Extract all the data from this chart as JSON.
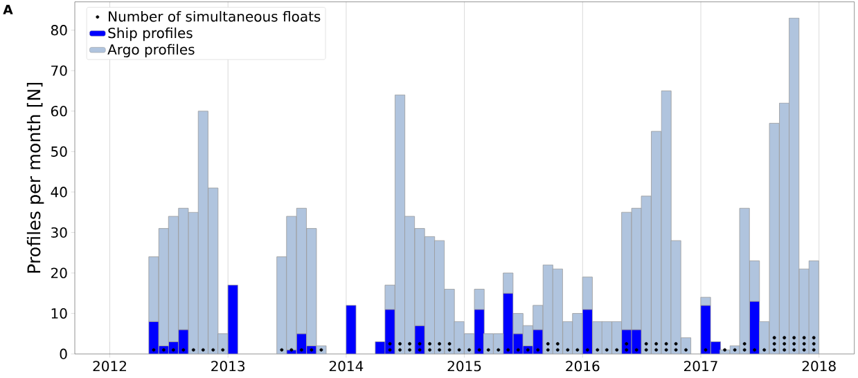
{
  "chart_data": {
    "type": "bar",
    "stacked": true,
    "ylabel": "Profiles per month [N]",
    "annotations": [
      "A"
    ],
    "xlim": [
      "2011-09-15",
      "2018-04-20"
    ],
    "ylim": [
      0,
      87
    ],
    "xticks": [
      {
        "value": "2012",
        "label": "2012"
      },
      {
        "value": "2013",
        "label": "2013"
      },
      {
        "value": "2014",
        "label": "2014"
      },
      {
        "value": "2015",
        "label": "2015"
      },
      {
        "value": "2016",
        "label": "2016"
      },
      {
        "value": "2017",
        "label": "2017"
      },
      {
        "value": "2018",
        "label": "2018"
      }
    ],
    "yticks": [
      0,
      10,
      20,
      30,
      40,
      50,
      60,
      70,
      80
    ],
    "grid": "x",
    "legend": "top left",
    "x": [
      "2012-05-16",
      "2012-06-16",
      "2012-07-16",
      "2012-08-16",
      "2012-09-16",
      "2012-10-16",
      "2012-11-16",
      "2012-12-16",
      "2013-01-16",
      "2013-06-16",
      "2013-07-16",
      "2013-08-16",
      "2013-09-16",
      "2013-10-16",
      "2014-01-16",
      "2014-04-16",
      "2014-05-16",
      "2014-06-16",
      "2014-07-16",
      "2014-08-16",
      "2014-09-16",
      "2014-10-16",
      "2014-11-16",
      "2014-12-16",
      "2015-01-16",
      "2015-02-16",
      "2015-03-16",
      "2015-04-16",
      "2015-05-16",
      "2015-06-16",
      "2015-07-16",
      "2015-08-16",
      "2015-09-16",
      "2015-10-16",
      "2015-11-16",
      "2015-12-16",
      "2016-01-16",
      "2016-02-16",
      "2016-03-16",
      "2016-04-16",
      "2016-05-16",
      "2016-06-16",
      "2016-07-16",
      "2016-08-16",
      "2016-09-16",
      "2016-10-16",
      "2016-11-16",
      "2017-01-16",
      "2017-02-16",
      "2017-03-16",
      "2017-04-16",
      "2017-05-16",
      "2017-06-16",
      "2017-07-16",
      "2017-08-16",
      "2017-09-16",
      "2017-10-16",
      "2017-11-16",
      "2017-12-16"
    ],
    "series": [
      {
        "name": "Ship profiles",
        "color": "#0000ff",
        "values": [
          8,
          2,
          3,
          6,
          null,
          null,
          null,
          null,
          17,
          null,
          1,
          5,
          2,
          null,
          12,
          3,
          11,
          null,
          null,
          7,
          null,
          null,
          null,
          null,
          null,
          11,
          null,
          null,
          15,
          5,
          2,
          6,
          null,
          null,
          null,
          null,
          11,
          null,
          null,
          null,
          6,
          6,
          null,
          null,
          null,
          null,
          null,
          12,
          3,
          null,
          null,
          null,
          13,
          null,
          null,
          null,
          null,
          null,
          null
        ]
      },
      {
        "name": "Argo profiles",
        "color": "#b0c4de",
        "values": [
          16,
          29,
          31,
          30,
          35,
          60,
          41,
          5,
          null,
          24,
          33,
          31,
          29,
          2,
          null,
          null,
          6,
          64,
          34,
          24,
          29,
          28,
          16,
          8,
          5,
          5,
          5,
          5,
          5,
          5,
          5,
          6,
          22,
          21,
          8,
          10,
          8,
          8,
          8,
          8,
          29,
          30,
          39,
          55,
          65,
          28,
          4,
          2,
          null,
          1,
          2,
          36,
          10,
          8,
          57,
          62,
          83,
          21,
          23
        ]
      },
      {
        "name": "Number of simultaneous floats",
        "type": "scatter",
        "color": "#000000",
        "marker": "circle",
        "x": [
          "2012-05-16",
          "2012-06-16",
          "2012-07-16",
          "2012-08-16",
          "2012-09-16",
          "2012-10-16",
          "2012-11-16",
          "2012-12-16",
          "2013-06-16",
          "2013-07-16",
          "2013-08-16",
          "2013-09-16",
          "2013-10-16",
          "2014-05-16",
          "2014-05-16",
          "2014-06-16",
          "2014-06-16",
          "2014-07-16",
          "2014-07-16",
          "2014-08-16",
          "2014-08-16",
          "2014-09-16",
          "2014-09-16",
          "2014-10-16",
          "2014-10-16",
          "2014-11-16",
          "2014-11-16",
          "2014-12-16",
          "2015-01-16",
          "2015-02-16",
          "2015-03-16",
          "2015-04-16",
          "2015-05-16",
          "2015-06-16",
          "2015-07-16",
          "2015-08-16",
          "2015-09-16",
          "2015-09-16",
          "2015-10-16",
          "2015-10-16",
          "2015-11-16",
          "2015-12-16",
          "2016-01-16",
          "2016-02-16",
          "2016-03-16",
          "2016-04-16",
          "2016-05-16",
          "2016-05-16",
          "2016-06-16",
          "2016-07-16",
          "2016-07-16",
          "2016-08-16",
          "2016-08-16",
          "2016-09-16",
          "2016-09-16",
          "2016-10-16",
          "2016-10-16",
          "2016-11-16",
          "2017-01-16",
          "2017-03-16",
          "2017-04-16",
          "2017-05-16",
          "2017-05-16",
          "2017-06-16",
          "2017-07-16",
          "2017-08-16",
          "2017-08-16",
          "2017-08-16",
          "2017-09-16",
          "2017-09-16",
          "2017-09-16",
          "2017-10-16",
          "2017-10-16",
          "2017-10-16",
          "2017-11-16",
          "2017-11-16",
          "2017-11-16",
          "2017-12-16",
          "2017-12-16",
          "2017-12-16"
        ],
        "values": [
          1,
          1,
          1,
          1,
          1,
          1,
          1,
          1,
          1,
          1,
          1,
          1,
          1,
          1,
          2.5,
          1,
          2.5,
          1,
          2.5,
          1,
          2.5,
          1,
          2.5,
          1,
          2.5,
          1,
          2.5,
          1,
          1,
          1,
          1,
          1,
          1,
          1,
          1,
          1,
          1,
          2.5,
          1,
          2.5,
          1,
          1,
          1,
          1,
          1,
          1,
          1,
          2.5,
          1,
          1,
          2.5,
          1,
          2.5,
          1,
          2.5,
          1,
          2.5,
          1,
          1,
          1,
          1,
          1,
          2.5,
          1,
          1,
          1,
          2.5,
          4,
          1,
          2.5,
          4,
          1,
          2.5,
          4,
          1,
          2.5,
          4,
          1,
          2.5,
          4
        ]
      }
    ]
  }
}
